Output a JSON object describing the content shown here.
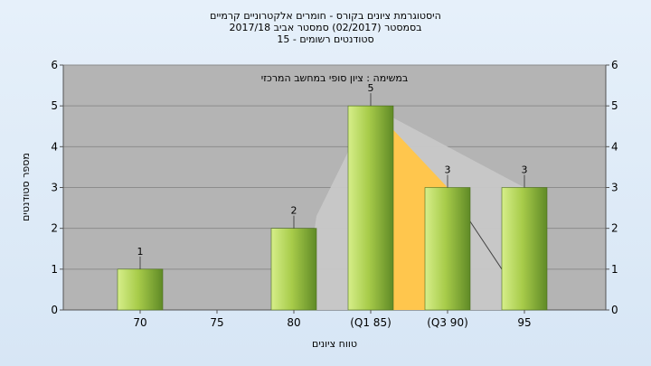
{
  "chart_data": {
    "type": "bar",
    "title_lines": [
      "היסטוגרמת ציונים בקורס - חומרים אלקטרוניים קרמיים",
      "בסמסטר  (02/2017)  סמסטר אביב 2017/18",
      "סטודנטים רשומים - 15"
    ],
    "annotation": "במשימה : ציון סופי במחשב המרכזי",
    "categories": [
      "70",
      "75",
      "80",
      "(Q1 85)",
      "(Q3 90)",
      "95"
    ],
    "values": [
      1,
      0,
      2,
      5,
      3,
      3
    ],
    "data_labels": [
      "1",
      "",
      "2",
      "5",
      "3",
      "3"
    ],
    "xlabel": "טווח ציונים",
    "ylabel": "מספר סטודנטים",
    "ylim": [
      0,
      6
    ],
    "yticks": [
      "0",
      "1",
      "2",
      "3",
      "4",
      "5",
      "6"
    ],
    "grid": true,
    "colors": {
      "bar_light": "#d6ee8a",
      "bar_mid": "#a8cc4a",
      "bar_dark": "#5f8a26",
      "plot_bg": "#b4b4b4",
      "gray_area": "#c8c8c8",
      "quartile_area": "#ffc64d"
    }
  }
}
